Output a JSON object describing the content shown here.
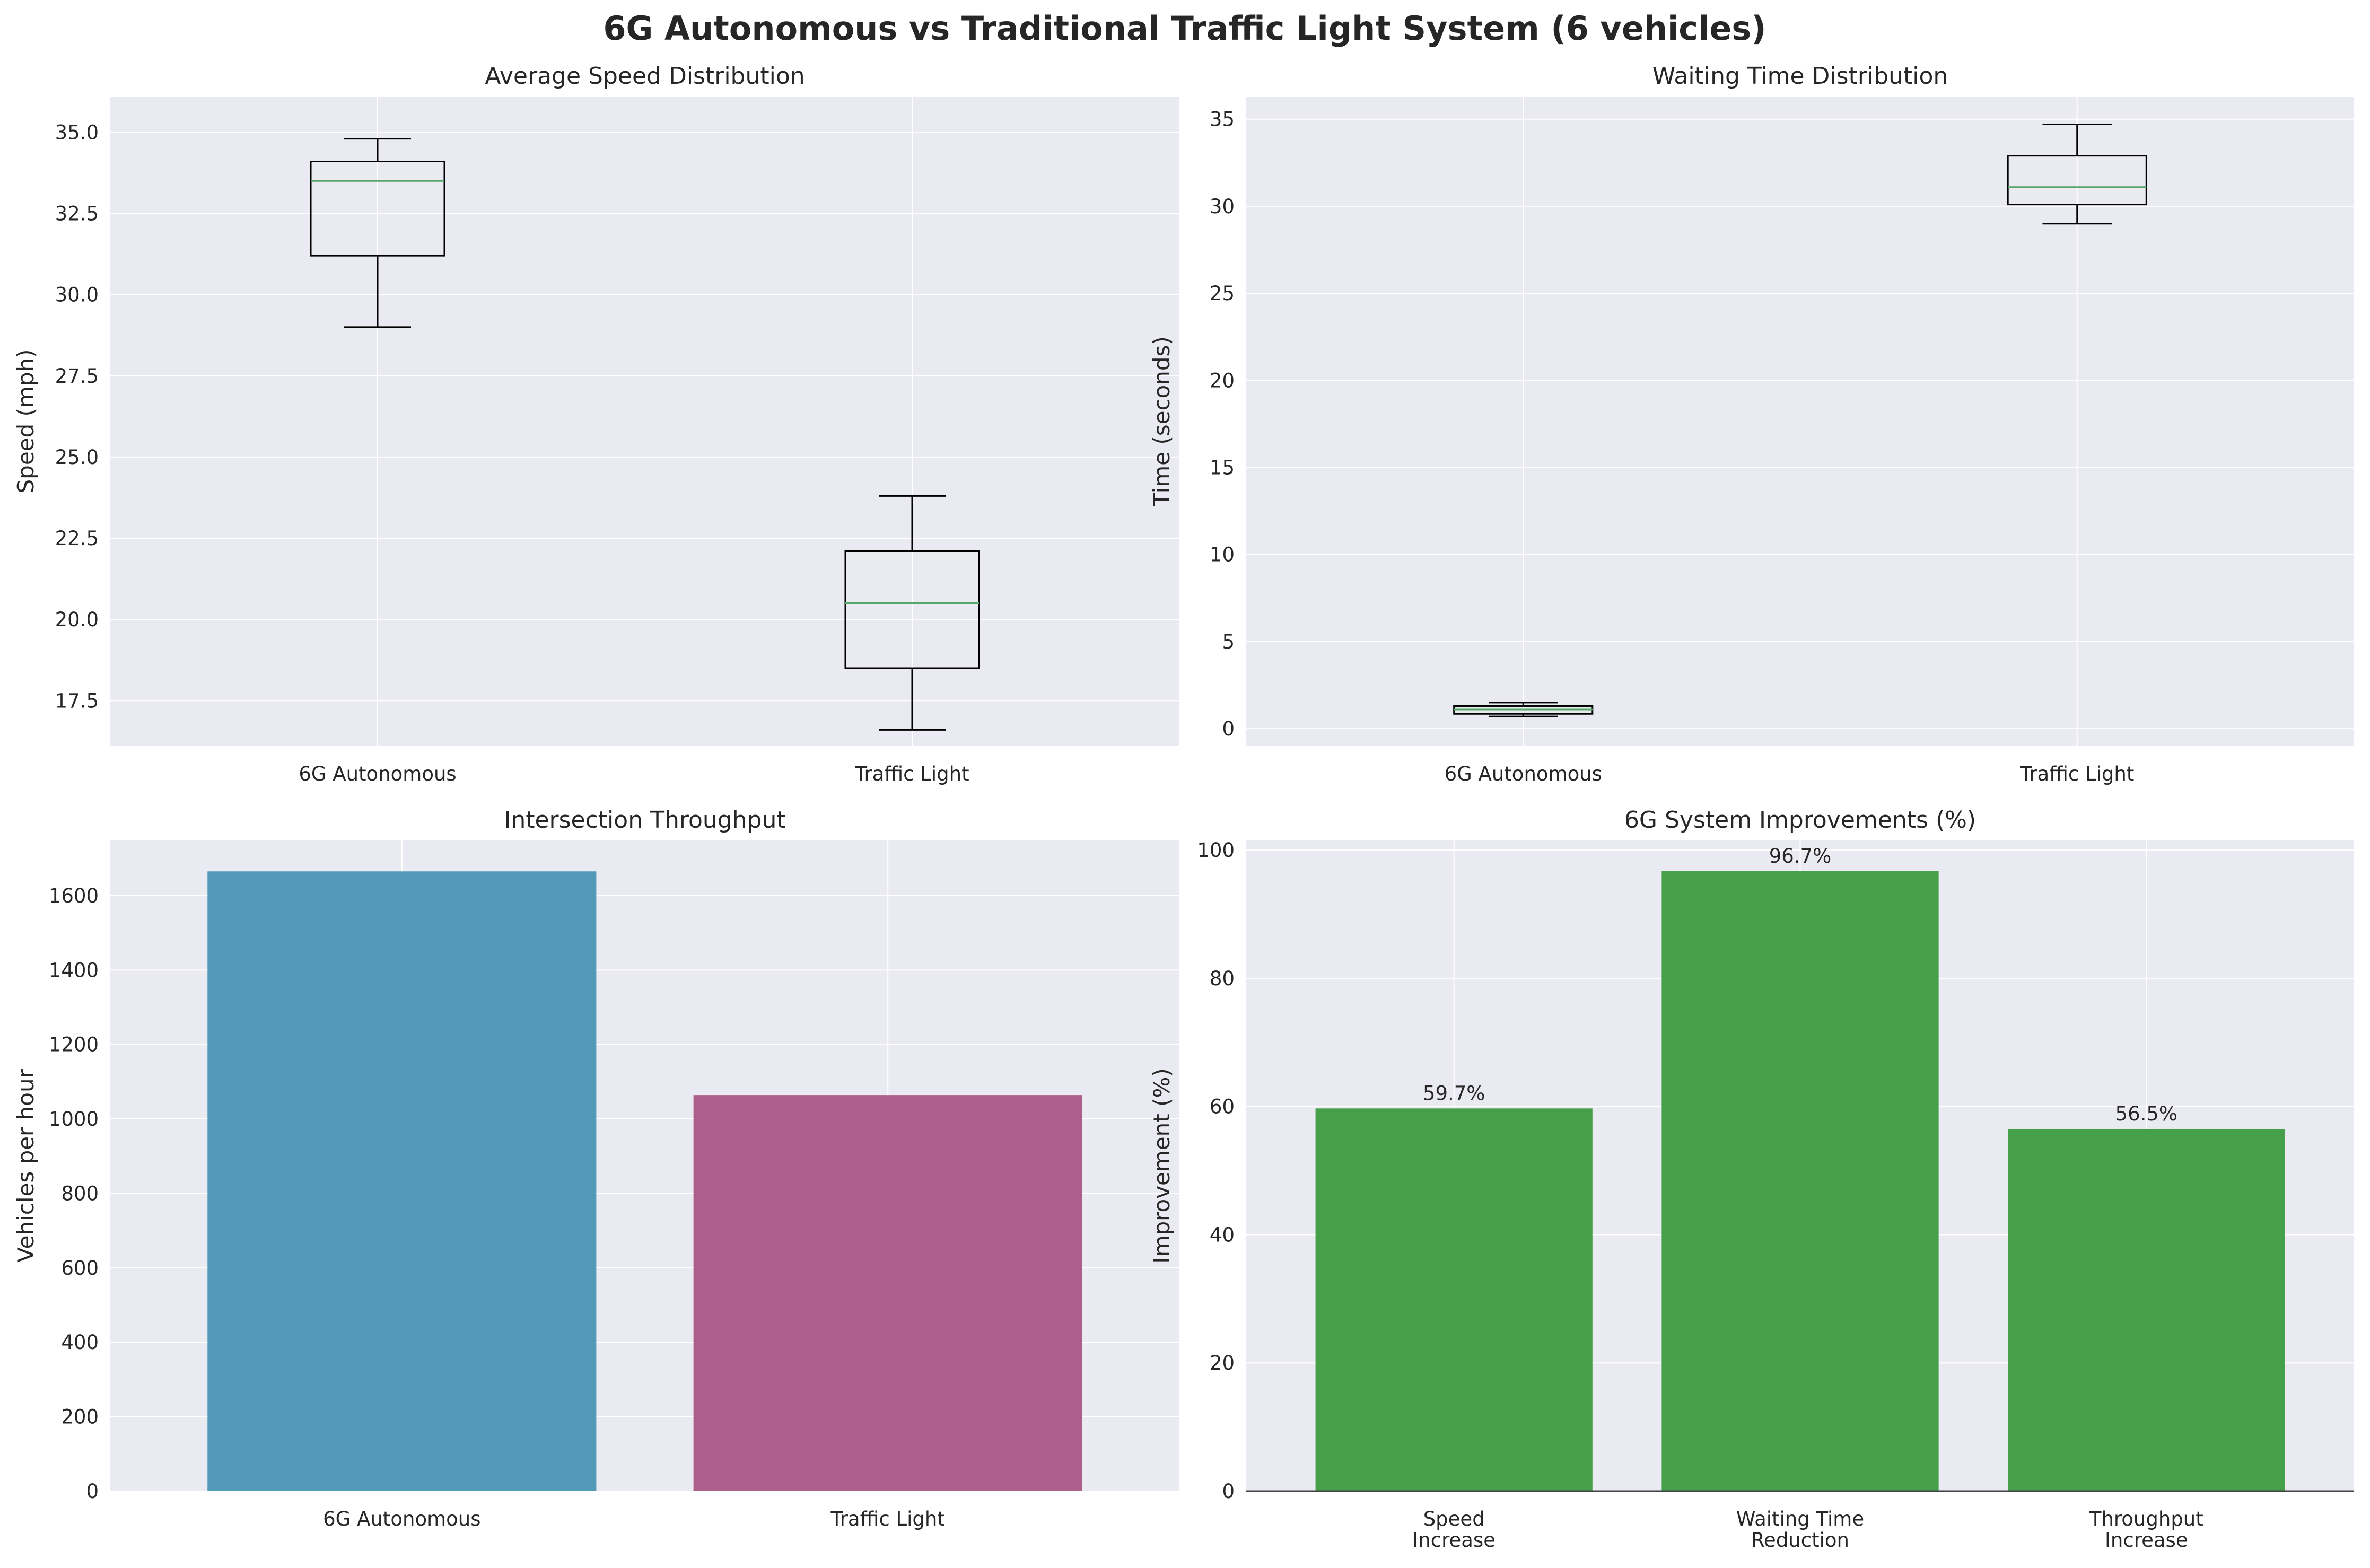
{
  "figure": {
    "title": "6G Autonomous vs Traditional Traffic Light System (6 vehicles)"
  },
  "colors": {
    "background": "#eaeaf2",
    "grid": "#ffffff",
    "box_line": "#000000",
    "median": "#55a868",
    "bar_6g": "#5499b8",
    "bar_traffic": "#ae5e8a",
    "bar_improvement": "#45a049",
    "text": "#262626"
  },
  "chart_data": [
    {
      "id": "speed",
      "type": "box",
      "title": "Average Speed Distribution",
      "xlabel": "",
      "ylabel": "Speed (mph)",
      "categories": [
        "6G Autonomous",
        "Traffic Light"
      ],
      "boxes": [
        {
          "whisker_low": 29.0,
          "q1": 31.2,
          "median": 33.5,
          "q3": 34.1,
          "whisker_high": 34.8
        },
        {
          "whisker_low": 16.6,
          "q1": 18.5,
          "median": 20.5,
          "q3": 22.1,
          "whisker_high": 23.8
        }
      ],
      "ylim": [
        16.1,
        36.1
      ],
      "yticks": [
        17.5,
        20.0,
        22.5,
        25.0,
        27.5,
        30.0,
        32.5,
        35.0
      ],
      "yticklabels": [
        "17.5",
        "20.0",
        "22.5",
        "25.0",
        "27.5",
        "30.0",
        "32.5",
        "35.0"
      ],
      "grid": true
    },
    {
      "id": "waiting",
      "type": "box",
      "title": "Waiting Time Distribution",
      "xlabel": "",
      "ylabel": "Time (seconds)",
      "categories": [
        "6G Autonomous",
        "Traffic Light"
      ],
      "boxes": [
        {
          "whisker_low": 0.7,
          "q1": 0.85,
          "median": 1.1,
          "q3": 1.3,
          "whisker_high": 1.5
        },
        {
          "whisker_low": 29.0,
          "q1": 30.1,
          "median": 31.1,
          "q3": 32.9,
          "whisker_high": 34.7
        }
      ],
      "ylim": [
        -1.0,
        36.3
      ],
      "yticks": [
        0,
        5,
        10,
        15,
        20,
        25,
        30,
        35
      ],
      "yticklabels": [
        "0",
        "5",
        "10",
        "15",
        "20",
        "25",
        "30",
        "35"
      ],
      "grid": true
    },
    {
      "id": "throughput",
      "type": "bar",
      "title": "Intersection Throughput",
      "xlabel": "",
      "ylabel": "Vehicles per hour",
      "categories": [
        "6G Autonomous",
        "Traffic Light"
      ],
      "values": [
        1665,
        1064
      ],
      "bar_colors": [
        "#5499b8",
        "#ae5e8a"
      ],
      "ylim": [
        0,
        1748
      ],
      "yticks": [
        0,
        200,
        400,
        600,
        800,
        1000,
        1200,
        1400,
        1600
      ],
      "yticklabels": [
        "0",
        "200",
        "400",
        "600",
        "800",
        "1000",
        "1200",
        "1400",
        "1600"
      ],
      "grid": true
    },
    {
      "id": "improvements",
      "type": "bar",
      "title": "6G System Improvements (%)",
      "xlabel": "",
      "ylabel": "Improvement (%)",
      "categories": [
        [
          "Speed",
          "Increase"
        ],
        [
          "Waiting Time",
          "Reduction"
        ],
        [
          "Throughput",
          "Increase"
        ]
      ],
      "values": [
        59.7,
        96.7,
        56.5
      ],
      "value_labels": [
        "59.7%",
        "96.7%",
        "56.5%"
      ],
      "bar_colors": [
        "#45a049",
        "#45a049",
        "#45a049"
      ],
      "ylim": [
        0,
        101.5
      ],
      "yticks": [
        0,
        20,
        40,
        60,
        80,
        100
      ],
      "yticklabels": [
        "0",
        "20",
        "40",
        "60",
        "80",
        "100"
      ],
      "zero_line": true,
      "grid": true
    }
  ]
}
